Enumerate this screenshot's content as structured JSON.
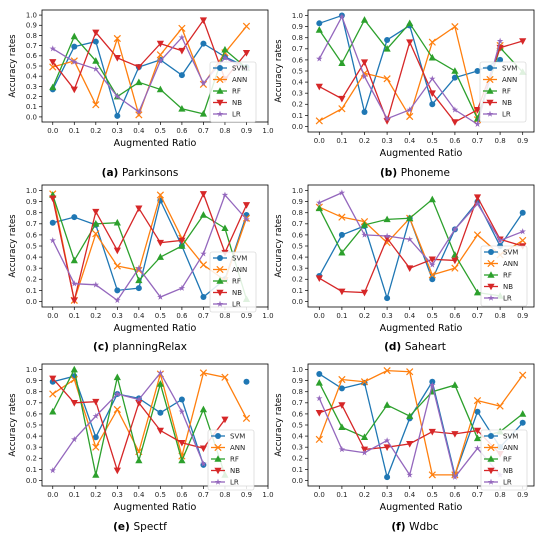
{
  "figure": {
    "colors": {
      "SVM": "#1f77b4",
      "ANN": "#ff7f0e",
      "RF": "#2ca02c",
      "NB": "#d62728",
      "LR": "#9467bd"
    },
    "markers": {
      "SVM": "circle",
      "ANN": "x",
      "RF": "triangle-up",
      "NB": "triangle-down",
      "LR": "pentagon-star"
    }
  },
  "chart_data": [
    {
      "type": "line",
      "id": "a",
      "caption_letter": "(a)",
      "caption_text": "Parkinsons",
      "xlabel": "Augmented Ratio",
      "ylabel": "Accuracy rates",
      "x": [
        0.0,
        0.1,
        0.2,
        0.3,
        0.4,
        0.5,
        0.6,
        0.7,
        0.8,
        0.9
      ],
      "xticks": [
        "0.0",
        "0.1",
        "0.2",
        "0.3",
        "0.4",
        "0.5",
        "0.6",
        "0.7",
        "0.8",
        "0.9",
        "1.0"
      ],
      "yticks": [
        "0.0",
        "0.1",
        "0.2",
        "0.3",
        "0.4",
        "0.5",
        "0.6",
        "0.7",
        "0.8",
        "0.9",
        "1.0"
      ],
      "ylim": [
        0,
        1
      ],
      "xlim": [
        -0.05,
        1.0
      ],
      "series": [
        {
          "name": "SVM",
          "values": [
            0.27,
            0.69,
            0.74,
            0.01,
            0.49,
            0.56,
            0.41,
            0.72,
            0.59,
            0.49
          ]
        },
        {
          "name": "ANN",
          "values": [
            0.49,
            0.55,
            0.12,
            0.77,
            0.02,
            0.61,
            0.87,
            0.32,
            0.63,
            0.89
          ]
        },
        {
          "name": "RF",
          "values": [
            0.29,
            0.79,
            0.55,
            0.2,
            0.34,
            0.27,
            0.08,
            0.03,
            0.66,
            0.48
          ]
        },
        {
          "name": "NB",
          "values": [
            0.54,
            0.27,
            0.83,
            0.58,
            0.49,
            0.72,
            0.65,
            0.95,
            0.37,
            0.63
          ]
        },
        {
          "name": "LR",
          "values": [
            0.67,
            0.54,
            0.47,
            0.2,
            0.05,
            0.55,
            0.78,
            0.33,
            0.58,
            0.47
          ]
        }
      ]
    },
    {
      "type": "line",
      "id": "b",
      "caption_letter": "(b)",
      "caption_text": "Phoneme",
      "xlabel": "Augmented Ratio",
      "ylabel": "Accuracy rates",
      "x": [
        0.0,
        0.1,
        0.2,
        0.3,
        0.4,
        0.5,
        0.6,
        0.7,
        0.8,
        0.9
      ],
      "xticks": [
        "0.0",
        "0.1",
        "0.2",
        "0.3",
        "0.4",
        "0.5",
        "0.6",
        "0.7",
        "0.8",
        "0.9"
      ],
      "yticks": [
        "0.0",
        "0.1",
        "0.2",
        "0.3",
        "0.4",
        "0.5",
        "0.6",
        "0.7",
        "0.8",
        "0.9",
        "1.0"
      ],
      "ylim": [
        0,
        1
      ],
      "xlim": [
        -0.05,
        0.95
      ],
      "series": [
        {
          "name": "SVM",
          "values": [
            0.93,
            1.0,
            0.13,
            0.78,
            0.91,
            0.2,
            0.44,
            0.5,
            0.6,
            null
          ]
        },
        {
          "name": "ANN",
          "values": [
            0.05,
            0.16,
            0.48,
            0.43,
            0.09,
            0.76,
            0.9,
            0.06,
            0.73,
            null
          ]
        },
        {
          "name": "RF",
          "values": [
            0.87,
            0.57,
            0.96,
            0.7,
            0.93,
            0.62,
            0.5,
            0.07,
            0.71,
            0.49
          ]
        },
        {
          "name": "NB",
          "values": [
            0.36,
            0.25,
            0.58,
            0.05,
            0.76,
            0.3,
            0.04,
            0.15,
            0.71,
            0.77
          ]
        },
        {
          "name": "LR",
          "values": [
            0.61,
            0.99,
            0.45,
            0.07,
            0.15,
            0.43,
            0.15,
            0.02,
            0.77,
            null
          ]
        }
      ]
    },
    {
      "type": "line",
      "id": "c",
      "caption_letter": "(c)",
      "caption_text": "planningRelax",
      "xlabel": "Augmented Ratio",
      "ylabel": "Accuracy rates",
      "x": [
        0.0,
        0.1,
        0.2,
        0.3,
        0.4,
        0.5,
        0.6,
        0.7,
        0.8,
        0.9
      ],
      "xticks": [
        "0.0",
        "0.1",
        "0.2",
        "0.3",
        "0.4",
        "0.5",
        "0.6",
        "0.7",
        "0.8",
        "0.9",
        "1.0"
      ],
      "yticks": [
        "0.0",
        "0.1",
        "0.2",
        "0.3",
        "0.4",
        "0.5",
        "0.6",
        "0.7",
        "0.8",
        "0.9",
        "1.0"
      ],
      "ylim": [
        0,
        1
      ],
      "xlim": [
        -0.05,
        1.0
      ],
      "series": [
        {
          "name": "SVM",
          "values": [
            0.71,
            0.76,
            0.69,
            0.1,
            0.12,
            0.91,
            0.5,
            0.04,
            0.2,
            0.78
          ]
        },
        {
          "name": "ANN",
          "values": [
            0.97,
            0.01,
            0.61,
            0.32,
            0.28,
            0.96,
            0.57,
            0.33,
            0.19,
            0.75
          ]
        },
        {
          "name": "RF",
          "values": [
            0.96,
            0.37,
            0.7,
            0.71,
            0.19,
            0.4,
            0.5,
            0.78,
            0.66,
            0.02
          ]
        },
        {
          "name": "NB",
          "values": [
            0.93,
            0.01,
            0.81,
            0.46,
            0.84,
            0.53,
            0.55,
            0.97,
            0.44,
            0.87
          ]
        },
        {
          "name": "LR",
          "values": [
            0.55,
            0.16,
            0.15,
            0.01,
            0.3,
            0.04,
            0.12,
            0.43,
            0.96,
            0.74
          ]
        }
      ]
    },
    {
      "type": "line",
      "id": "d",
      "caption_letter": "(d)",
      "caption_text": "Saheart",
      "xlabel": "Augmented Ratio",
      "ylabel": "Accuracy rates",
      "x": [
        0.0,
        0.1,
        0.2,
        0.3,
        0.4,
        0.5,
        0.6,
        0.7,
        0.8,
        0.9
      ],
      "xticks": [
        "0.0",
        "0.1",
        "0.2",
        "0.3",
        "0.4",
        "0.5",
        "0.6",
        "0.7",
        "0.8",
        "0.9"
      ],
      "yticks": [
        "0.0",
        "0.1",
        "0.2",
        "0.3",
        "0.4",
        "0.5",
        "0.6",
        "0.7",
        "0.8",
        "0.9",
        "1.0"
      ],
      "ylim": [
        0,
        1
      ],
      "xlim": [
        -0.05,
        0.95
      ],
      "series": [
        {
          "name": "SVM",
          "values": [
            0.23,
            0.6,
            0.68,
            0.03,
            0.75,
            0.2,
            0.65,
            0.9,
            0.5,
            0.8
          ]
        },
        {
          "name": "ANN",
          "values": [
            0.85,
            0.76,
            0.72,
            0.53,
            0.75,
            0.24,
            0.3,
            0.6,
            0.42,
            0.55
          ]
        },
        {
          "name": "RF",
          "values": [
            0.84,
            0.44,
            0.69,
            0.74,
            0.75,
            0.92,
            0.42,
            0.08,
            0.05,
            null
          ]
        },
        {
          "name": "NB",
          "values": [
            0.21,
            0.09,
            0.08,
            0.57,
            0.3,
            0.38,
            0.37,
            0.94,
            0.56,
            0.5
          ]
        },
        {
          "name": "LR",
          "values": [
            0.89,
            0.98,
            0.6,
            0.59,
            0.56,
            0.33,
            0.65,
            0.88,
            0.55,
            0.63
          ]
        }
      ]
    },
    {
      "type": "line",
      "id": "e",
      "caption_letter": "(e)",
      "caption_text": "Spectf",
      "xlabel": "Augmented Ratio",
      "ylabel": "Accuracy rates",
      "x": [
        0.0,
        0.1,
        0.2,
        0.3,
        0.4,
        0.5,
        0.6,
        0.7,
        0.8,
        0.9
      ],
      "xticks": [
        "0.0",
        "0.1",
        "0.2",
        "0.3",
        "0.4",
        "0.5",
        "0.6",
        "0.7",
        "0.8",
        "0.9",
        "1.0"
      ],
      "yticks": [
        "0.0",
        "0.1",
        "0.2",
        "0.3",
        "0.4",
        "0.5",
        "0.6",
        "0.7",
        "0.8",
        "0.9",
        "1.0"
      ],
      "ylim": [
        0,
        1
      ],
      "xlim": [
        -0.05,
        1.0
      ],
      "series": [
        {
          "name": "SVM",
          "values": [
            0.89,
            0.94,
            0.39,
            0.78,
            0.74,
            0.61,
            0.73,
            0.14,
            null,
            0.89
          ]
        },
        {
          "name": "ANN",
          "values": [
            0.78,
            0.91,
            0.3,
            0.64,
            0.26,
            0.96,
            0.22,
            0.97,
            0.93,
            0.56
          ]
        },
        {
          "name": "RF",
          "values": [
            0.62,
            1.0,
            0.05,
            0.93,
            0.18,
            0.87,
            0.18,
            0.64,
            0.05,
            null
          ]
        },
        {
          "name": "NB",
          "values": [
            0.92,
            0.7,
            0.71,
            0.09,
            0.7,
            0.45,
            0.34,
            0.29,
            0.55,
            null
          ]
        },
        {
          "name": "LR",
          "values": [
            0.09,
            0.37,
            0.58,
            0.78,
            0.73,
            0.97,
            0.62,
            0.15,
            null,
            null
          ]
        }
      ]
    },
    {
      "type": "line",
      "id": "f",
      "caption_letter": "(f)",
      "caption_text": "Wdbc",
      "xlabel": "Augmented Ratio",
      "ylabel": "Accuracy rates",
      "x": [
        0.0,
        0.1,
        0.2,
        0.3,
        0.4,
        0.5,
        0.6,
        0.7,
        0.8,
        0.9
      ],
      "xticks": [
        "0.0",
        "0.1",
        "0.2",
        "0.3",
        "0.4",
        "0.5",
        "0.6",
        "0.7",
        "0.8",
        "0.9"
      ],
      "yticks": [
        "0.0",
        "0.1",
        "0.2",
        "0.3",
        "0.4",
        "0.5",
        "0.6",
        "0.7",
        "0.8",
        "0.9",
        "1.0"
      ],
      "ylim": [
        0,
        1
      ],
      "xlim": [
        -0.05,
        0.95
      ],
      "series": [
        {
          "name": "SVM",
          "values": [
            0.96,
            0.83,
            0.88,
            0.03,
            0.56,
            0.89,
            0.05,
            0.62,
            0.3,
            0.52
          ]
        },
        {
          "name": "ANN",
          "values": [
            0.37,
            0.91,
            0.89,
            0.99,
            0.98,
            0.05,
            0.05,
            0.72,
            0.67,
            0.95
          ]
        },
        {
          "name": "RF",
          "values": [
            0.88,
            0.48,
            0.39,
            0.68,
            0.58,
            0.8,
            0.86,
            0.38,
            0.44,
            0.6
          ]
        },
        {
          "name": "NB",
          "values": [
            0.61,
            0.68,
            0.28,
            0.3,
            0.33,
            0.44,
            0.42,
            0.45,
            0.24,
            null
          ]
        },
        {
          "name": "LR",
          "values": [
            0.74,
            0.28,
            0.25,
            0.36,
            0.05,
            0.86,
            0.03,
            0.29,
            0.05,
            null
          ]
        }
      ]
    }
  ]
}
